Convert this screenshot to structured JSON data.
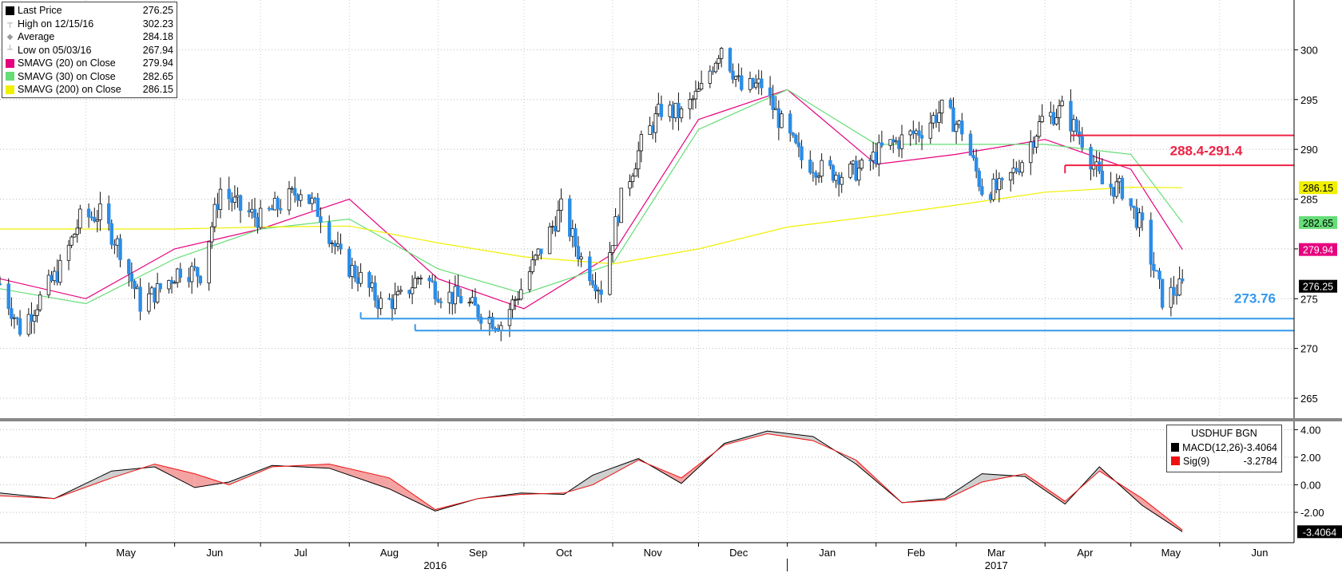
{
  "chart_data": {
    "type": "candlestick",
    "instrument": "USDHUF BGN",
    "price_panel": {
      "ylim": [
        263,
        305
      ],
      "yticks": [
        265,
        270,
        275,
        280,
        285,
        290,
        295,
        300
      ],
      "legend": [
        {
          "label": "Last Price",
          "value": "276.25",
          "color": "#000000",
          "marker": "square"
        },
        {
          "label": "High on 12/15/16",
          "value": "302.23",
          "color": "#999999",
          "marker": "high"
        },
        {
          "label": "Average",
          "value": "284.18",
          "color": "#999999",
          "marker": "avg"
        },
        {
          "label": "Low on 05/03/16",
          "value": "267.94",
          "color": "#999999",
          "marker": "low"
        },
        {
          "label": "SMAVG (20) on Close",
          "value": "279.94",
          "color": "#e6007e",
          "marker": "square"
        },
        {
          "label": "SMAVG (30) on Close",
          "value": "282.65",
          "color": "#66dd77",
          "marker": "square"
        },
        {
          "label": "SMAVG (200) on Close",
          "value": "286.15",
          "color": "#f0f000",
          "marker": "square"
        }
      ],
      "series": [
        {
          "name": "Last Price",
          "type": "ohlc_close_path",
          "color": "#000000",
          "x": [
            "2016-04-01",
            "2016-04-08",
            "2016-04-15",
            "2016-04-22",
            "2016-04-29",
            "2016-05-06",
            "2016-05-13",
            "2016-05-20",
            "2016-05-27",
            "2016-06-03",
            "2016-06-10",
            "2016-06-17",
            "2016-06-24",
            "2016-07-01",
            "2016-07-08",
            "2016-07-15",
            "2016-07-22",
            "2016-07-29",
            "2016-08-05",
            "2016-08-12",
            "2016-08-19",
            "2016-08-26",
            "2016-09-02",
            "2016-09-09",
            "2016-09-16",
            "2016-09-23",
            "2016-09-30",
            "2016-10-07",
            "2016-10-14",
            "2016-10-21",
            "2016-10-28",
            "2016-11-04",
            "2016-11-11",
            "2016-11-18",
            "2016-11-25",
            "2016-12-02",
            "2016-12-09",
            "2016-12-16",
            "2016-12-23",
            "2016-12-30",
            "2017-01-06",
            "2017-01-13",
            "2017-01-20",
            "2017-01-27",
            "2017-02-03",
            "2017-02-10",
            "2017-02-17",
            "2017-02-24",
            "2017-03-03",
            "2017-03-10",
            "2017-03-17",
            "2017-03-24",
            "2017-03-31",
            "2017-04-07",
            "2017-04-14",
            "2017-04-21",
            "2017-04-28",
            "2017-05-05",
            "2017-05-12",
            "2017-05-19"
          ],
          "y": [
            276.5,
            272.0,
            275.0,
            278.0,
            283.0,
            283.5,
            280.0,
            274.5,
            276.0,
            278.0,
            277.5,
            286.0,
            284.0,
            283.0,
            284.5,
            286.0,
            283.5,
            279.0,
            277.0,
            274.5,
            275.0,
            277.5,
            275.5,
            275.0,
            273.5,
            272.5,
            276.0,
            280.0,
            284.0,
            279.0,
            276.0,
            285.0,
            290.5,
            294.0,
            293.5,
            296.0,
            300.5,
            296.0,
            296.5,
            292.5,
            289.0,
            288.0,
            287.5,
            288.0,
            290.0,
            291.0,
            292.0,
            294.0,
            292.0,
            286.0,
            286.0,
            289.0,
            293.0,
            294.0,
            291.0,
            286.5,
            286.0,
            282.0,
            275.0,
            276.25
          ]
        },
        {
          "name": "SMAVG (20) on Close",
          "color": "#e6007e",
          "x": [
            "2016-04-01",
            "2016-05-01",
            "2016-06-01",
            "2016-07-01",
            "2016-08-01",
            "2016-09-01",
            "2016-10-01",
            "2016-11-01",
            "2016-12-01",
            "2017-01-01",
            "2017-02-01",
            "2017-03-01",
            "2017-04-01",
            "2017-05-01",
            "2017-05-19"
          ],
          "y": [
            277.0,
            275.0,
            280.0,
            282.0,
            285.0,
            277.0,
            274.0,
            279.5,
            293.0,
            296.0,
            288.5,
            289.5,
            291.0,
            288.0,
            279.94
          ]
        },
        {
          "name": "SMAVG (30) on Close",
          "color": "#66dd77",
          "x": [
            "2016-04-01",
            "2016-05-01",
            "2016-06-01",
            "2016-07-01",
            "2016-08-01",
            "2016-09-01",
            "2016-10-01",
            "2016-11-01",
            "2016-12-01",
            "2017-01-01",
            "2017-02-01",
            "2017-03-01",
            "2017-04-01",
            "2017-05-01",
            "2017-05-19"
          ],
          "y": [
            276.0,
            274.5,
            279.0,
            282.0,
            283.0,
            278.0,
            275.5,
            278.5,
            292.0,
            296.0,
            290.5,
            290.5,
            290.5,
            289.5,
            282.65
          ]
        },
        {
          "name": "SMAVG (200) on Close",
          "color": "#f0f000",
          "x": [
            "2016-04-01",
            "2016-05-01",
            "2016-06-01",
            "2016-07-01",
            "2016-08-01",
            "2016-09-01",
            "2016-10-01",
            "2016-11-01",
            "2016-12-01",
            "2017-01-01",
            "2017-02-01",
            "2017-03-01",
            "2017-04-01",
            "2017-05-01",
            "2017-05-19"
          ],
          "y": [
            282.0,
            282.0,
            282.0,
            282.2,
            282.3,
            280.6,
            279.2,
            278.5,
            280.0,
            282.2,
            283.3,
            284.4,
            285.7,
            286.2,
            286.15
          ]
        }
      ],
      "annotations": [
        {
          "text": "288.4-291.4",
          "color": "#ee2244",
          "levels": [
            291.4,
            288.4
          ]
        },
        {
          "text": "273.76",
          "color": "#3399ee",
          "levels": [
            273.0,
            271.8
          ]
        }
      ],
      "right_labels": [
        {
          "text": "286.15",
          "bg": "#f0f000",
          "fg": "#000000",
          "y": 286.15
        },
        {
          "text": "282.65",
          "bg": "#66dd77",
          "fg": "#000000",
          "y": 282.65
        },
        {
          "text": "279.94",
          "bg": "#e6007e",
          "fg": "#ffffff",
          "y": 279.94
        },
        {
          "text": "276.25",
          "bg": "#000000",
          "fg": "#ffffff",
          "y": 276.25
        }
      ]
    },
    "macd_panel": {
      "title": "USDHUF BGN",
      "ylim": [
        -4.2,
        4.6
      ],
      "yticks": [
        "4.00",
        "2.00",
        "0.00",
        "-2.00"
      ],
      "yticks_values": [
        4,
        2,
        0,
        -2
      ],
      "legend": [
        {
          "label": "MACD(12,26)",
          "value": "-3.4064",
          "color": "#000000"
        },
        {
          "label": "Sig(9)",
          "value": "-3.2784",
          "color": "#ee1111"
        }
      ],
      "right_label": {
        "text": "-3.4064",
        "y": -3.4064
      },
      "x": [
        "2016-04-01",
        "2016-04-20",
        "2016-05-10",
        "2016-05-25",
        "2016-06-08",
        "2016-06-20",
        "2016-07-05",
        "2016-07-25",
        "2016-08-15",
        "2016-08-31",
        "2016-09-15",
        "2016-09-30",
        "2016-10-15",
        "2016-10-25",
        "2016-11-10",
        "2016-11-25",
        "2016-12-10",
        "2016-12-25",
        "2017-01-10",
        "2017-01-25",
        "2017-02-10",
        "2017-02-25",
        "2017-03-10",
        "2017-03-25",
        "2017-04-08",
        "2017-04-20",
        "2017-05-05",
        "2017-05-19"
      ],
      "macd": [
        -0.6,
        -1.0,
        1.0,
        1.3,
        -0.2,
        0.2,
        1.4,
        1.2,
        -0.3,
        -1.9,
        -1.0,
        -0.6,
        -0.7,
        0.7,
        1.9,
        0.1,
        3.0,
        3.9,
        3.5,
        1.5,
        -1.3,
        -1.0,
        0.8,
        0.6,
        -1.4,
        1.3,
        -1.5,
        -3.4064
      ],
      "signal": [
        -0.8,
        -1.0,
        0.5,
        1.5,
        0.8,
        0.0,
        1.3,
        1.5,
        0.5,
        -1.8,
        -1.0,
        -0.7,
        -0.6,
        0.0,
        1.8,
        0.5,
        2.9,
        3.7,
        3.2,
        1.8,
        -1.3,
        -1.1,
        0.2,
        0.8,
        -1.2,
        1.0,
        -1.0,
        -3.2784
      ]
    },
    "x_axis": {
      "ticks": [
        {
          "label": "May",
          "date": "2016-05-15"
        },
        {
          "label": "Jun",
          "date": "2016-06-15"
        },
        {
          "label": "Jul",
          "date": "2016-07-15"
        },
        {
          "label": "Aug",
          "date": "2016-08-15"
        },
        {
          "label": "Sep",
          "date": "2016-09-15"
        },
        {
          "label": "Oct",
          "date": "2016-10-15"
        },
        {
          "label": "Nov",
          "date": "2016-11-15"
        },
        {
          "label": "Dec",
          "date": "2016-12-15"
        },
        {
          "label": "Jan",
          "date": "2017-01-15"
        },
        {
          "label": "Feb",
          "date": "2017-02-15"
        },
        {
          "label": "Mar",
          "date": "2017-03-15"
        },
        {
          "label": "Apr",
          "date": "2017-04-15"
        },
        {
          "label": "May",
          "date": "2017-05-15"
        },
        {
          "label": "Jun",
          "date": "2017-06-15"
        }
      ],
      "years": [
        {
          "label": "2016",
          "date": "2016-08-31"
        },
        {
          "label": "2017",
          "date": "2017-03-15"
        }
      ]
    }
  }
}
